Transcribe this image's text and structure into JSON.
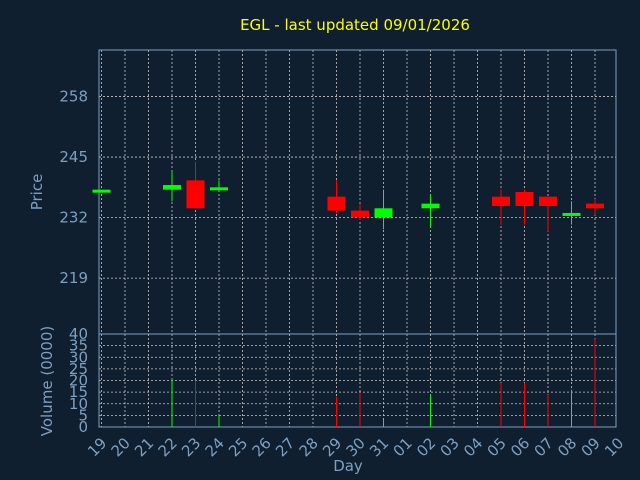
{
  "chart_data": {
    "type": "candlestick",
    "title": "EGL - last updated 09/01/2026",
    "xlabel": "Day",
    "ylabel_price": "Price",
    "ylabel_volume": "Volume (0000)",
    "x_tick_labels": [
      "19",
      "20",
      "21",
      "22",
      "23",
      "24",
      "25",
      "26",
      "27",
      "28",
      "29",
      "30",
      "31",
      "01",
      "02",
      "03",
      "04",
      "05",
      "06",
      "07",
      "08",
      "09",
      "10"
    ],
    "price_ticks": [
      219,
      232,
      245,
      258
    ],
    "price_range": [
      207,
      268
    ],
    "volume_ticks": [
      0,
      5,
      10,
      15,
      20,
      25,
      30,
      35,
      40
    ],
    "volume_range": [
      0,
      40
    ],
    "grid": true,
    "colors": {
      "up": "#00ff00",
      "down": "#ff0000",
      "title": "#ffff00",
      "axis": "#7f9fbf",
      "background": "#0f1f2f"
    },
    "candles": [
      {
        "day": "19",
        "open": 238.0,
        "high": 238.0,
        "low": 238.0,
        "close": 238.0,
        "volume": 0
      },
      {
        "day": "22",
        "open": 238.0,
        "high": 242.0,
        "low": 235.5,
        "close": 239.0,
        "volume": 21
      },
      {
        "day": "23",
        "open": 240.0,
        "high": 244.0,
        "low": 234.0,
        "close": 234.0,
        "volume": 20
      },
      {
        "day": "24",
        "open": 238.0,
        "high": 240.0,
        "low": 238.0,
        "close": 238.5,
        "volume": 5
      },
      {
        "day": "29",
        "open": 236.5,
        "high": 240.0,
        "low": 233.0,
        "close": 233.5,
        "volume": 13
      },
      {
        "day": "30",
        "open": 233.5,
        "high": 235.0,
        "low": 231.5,
        "close": 232.0,
        "volume": 15
      },
      {
        "day": "31",
        "open": 232.0,
        "high": 238.0,
        "low": 229.5,
        "close": 234.0,
        "volume": 3
      },
      {
        "day": "02",
        "open": 234.0,
        "high": 237.0,
        "low": 230.0,
        "close": 235.0,
        "volume": 14
      },
      {
        "day": "05",
        "open": 236.5,
        "high": 238.0,
        "low": 230.5,
        "close": 234.5,
        "volume": 19
      },
      {
        "day": "06",
        "open": 237.5,
        "high": 238.0,
        "low": 230.5,
        "close": 234.5,
        "volume": 19
      },
      {
        "day": "07",
        "open": 236.5,
        "high": 236.5,
        "low": 229.0,
        "close": 234.5,
        "volume": 14
      },
      {
        "day": "08",
        "open": 232.5,
        "high": 235.5,
        "low": 230.5,
        "close": 233.0,
        "volume": 16
      },
      {
        "day": "09",
        "open": 235.0,
        "high": 236.0,
        "low": 232.5,
        "close": 234.0,
        "volume": 38
      }
    ]
  }
}
